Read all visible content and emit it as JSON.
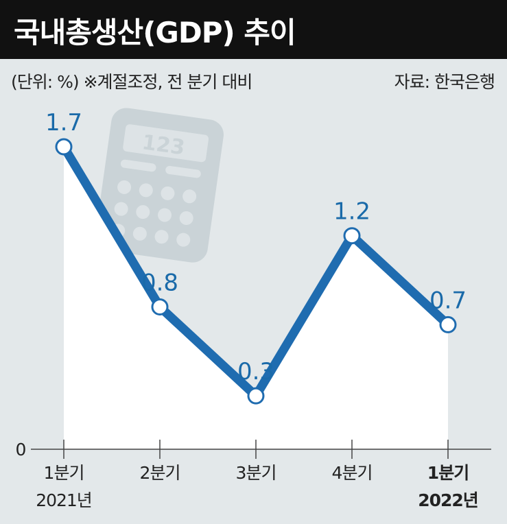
{
  "header": {
    "title": "국내총생산(GDP) 추이",
    "unit_note": "(단위: %)  ※계절조정, 전 분기 대비",
    "source": "자료: 한국은행"
  },
  "colors": {
    "line": "#1f6cb0",
    "label": "#1a6aa9",
    "background": "#e3e8ea",
    "area": "#ffffff",
    "title_bg": "#111111"
  },
  "chart_data": {
    "type": "line",
    "title": "국내총생산(GDP) 추이",
    "categories": [
      "1분기 2021년",
      "2분기",
      "3분기",
      "4분기",
      "1분기 2022년"
    ],
    "tick_labels": [
      {
        "line1": "1분기",
        "line2": "2021년",
        "bold": false
      },
      {
        "line1": "2분기",
        "line2": "",
        "bold": false
      },
      {
        "line1": "3분기",
        "line2": "",
        "bold": false
      },
      {
        "line1": "4분기",
        "line2": "",
        "bold": false
      },
      {
        "line1": "1분기",
        "line2": "2022년",
        "bold": true
      }
    ],
    "series": [
      {
        "values": [
          1.7,
          0.8,
          0.3,
          1.2,
          0.7
        ]
      }
    ],
    "data_labels": [
      "1.7",
      "0.8",
      "0.3",
      "1.2",
      "0.7"
    ],
    "y_axis_label": "0",
    "ylim": [
      0,
      1.7
    ],
    "xlabel": "",
    "ylabel": "",
    "grid": false,
    "legend": "none",
    "decoration": "calculator-icon"
  }
}
